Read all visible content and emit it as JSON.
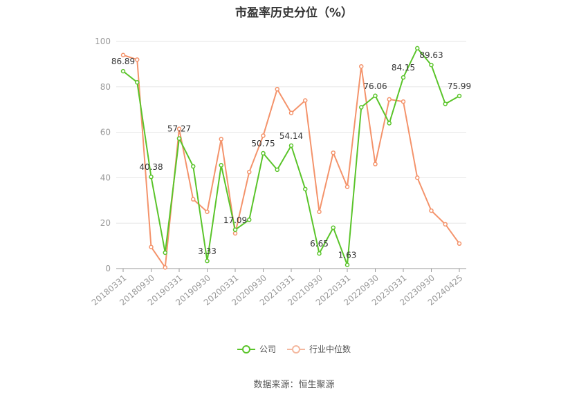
{
  "chart_data": {
    "type": "line",
    "title": "市盈率历史分位（%）",
    "source": "数据来源：恒生聚源",
    "ylim": [
      0,
      100
    ],
    "yticks": [
      0,
      20,
      40,
      60,
      80,
      100
    ],
    "grid": true,
    "legend_position": "bottom",
    "x": [
      "20180331",
      "20180630",
      "20180930",
      "20181231",
      "20190331",
      "20190630",
      "20190930",
      "20191231",
      "20200331",
      "20200630",
      "20200930",
      "20201231",
      "20210331",
      "20210630",
      "20210930",
      "20211231",
      "20220331",
      "20220630",
      "20220930",
      "20221231",
      "20230331",
      "20230630",
      "20230930",
      "20231231",
      "20240425"
    ],
    "xtick_labels": [
      "20180331",
      "20180930",
      "20190331",
      "20190930",
      "20200331",
      "20200930",
      "20210331",
      "20210930",
      "20220331",
      "20220930",
      "20230331",
      "20230930",
      "20240425"
    ],
    "series": [
      {
        "name": "公司",
        "color": "#5ac42a",
        "values": [
          86.89,
          82,
          40.38,
          7,
          57.27,
          45,
          3.33,
          45.5,
          17.09,
          21.5,
          50.75,
          43.5,
          54.14,
          35,
          6.65,
          18,
          1.63,
          71,
          76.06,
          64,
          84.15,
          97,
          89.63,
          72.5,
          75.99
        ],
        "labels": [
          "86.89",
          "",
          "40.38",
          "",
          "57.27",
          "",
          "3.33",
          "",
          "17.09",
          "",
          "50.75",
          "",
          "54.14",
          "",
          "6.65",
          "",
          "1.63",
          "",
          "76.06",
          "",
          "84.15",
          "",
          "89.63",
          "",
          "75.99"
        ]
      },
      {
        "name": "行业中位数",
        "color": "#f4936b",
        "values": [
          94,
          92,
          9.5,
          0.5,
          61.5,
          30.5,
          25,
          57,
          15.5,
          42.5,
          58.5,
          79,
          68.5,
          74,
          25,
          51,
          36,
          89,
          46,
          74.5,
          73.5,
          40,
          25.5,
          19.5,
          11
        ]
      }
    ]
  }
}
